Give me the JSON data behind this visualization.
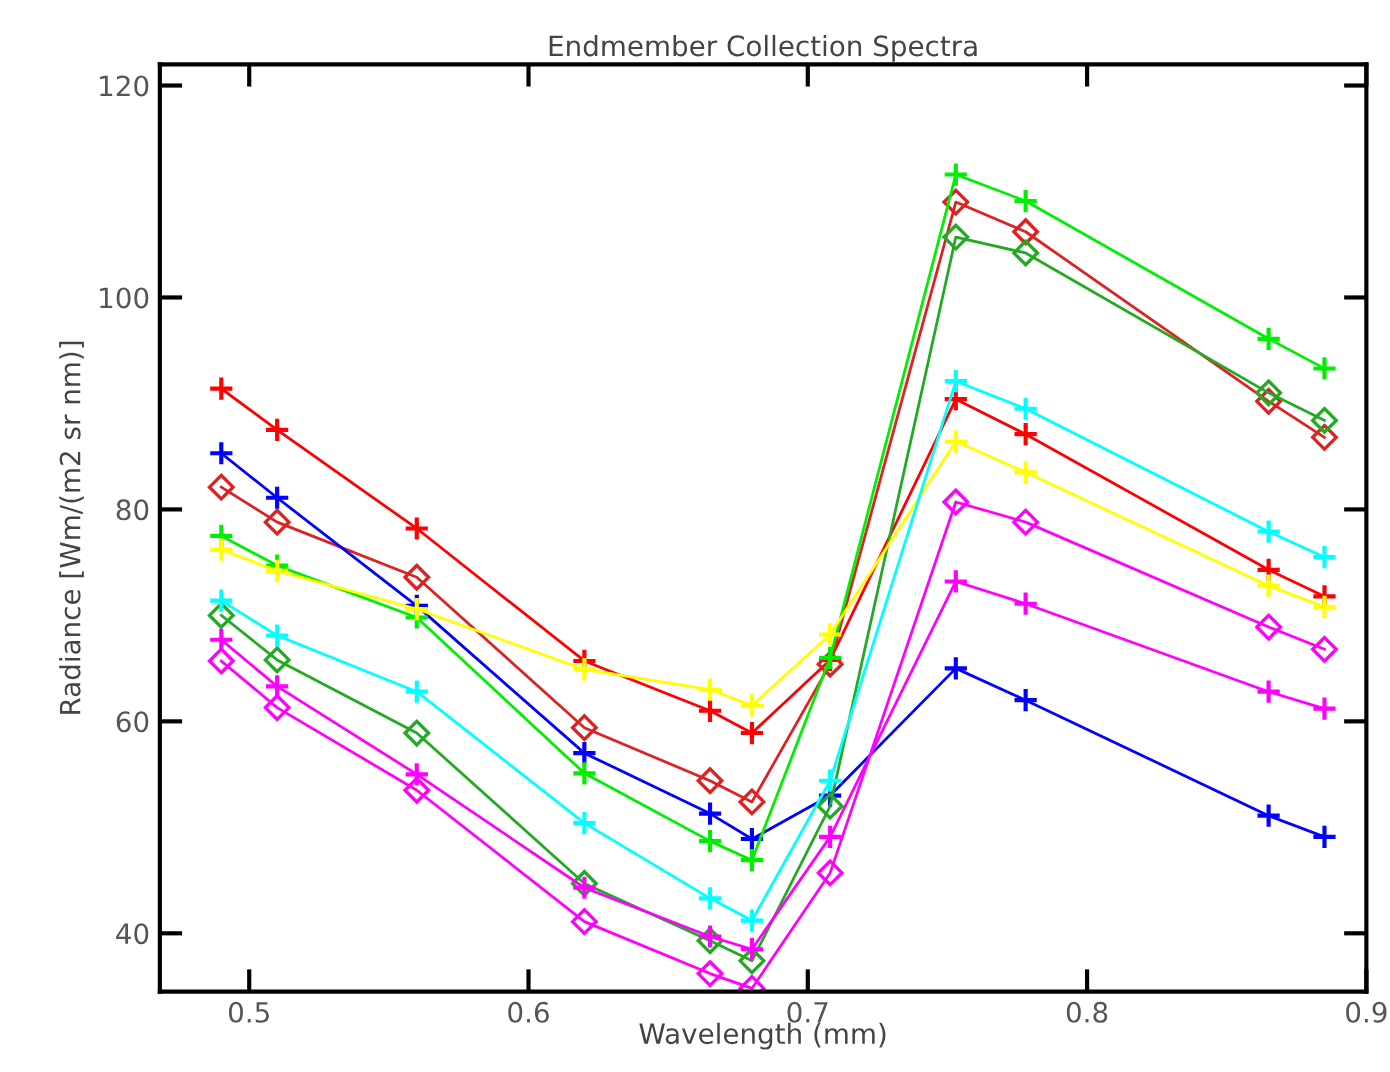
{
  "chart_data": {
    "type": "line",
    "title": "Endmember Collection Spectra",
    "xlabel": "Wavelength (mm)",
    "ylabel": "Radiance [Wm/(m2 sr nm)]",
    "x": [
      0.49,
      0.51,
      0.56,
      0.62,
      0.665,
      0.68,
      0.708,
      0.753,
      0.778,
      0.865,
      0.885
    ],
    "xlim": [
      0.468,
      0.9
    ],
    "xticks": [
      0.5,
      0.6,
      0.7,
      0.8,
      0.9
    ],
    "ylim": [
      34.5,
      122
    ],
    "yticks": [
      40,
      60,
      80,
      100,
      120
    ],
    "grid": false,
    "legend": false,
    "line_style": "solid",
    "series": [
      {
        "color": "#ff0000",
        "marker": "cross",
        "values": [
          91.4,
          87.5,
          78.2,
          65.7,
          61.0,
          58.9,
          65.8,
          90.4,
          87.1,
          74.3,
          71.8
        ]
      },
      {
        "color": "#dd2222",
        "marker": "diamond",
        "values": [
          82.1,
          78.8,
          73.6,
          59.4,
          54.4,
          52.4,
          65.4,
          109.0,
          106.2,
          90.2,
          86.8
        ]
      },
      {
        "color": "#0000ff",
        "marker": "cross",
        "values": [
          85.3,
          81.1,
          70.9,
          57.0,
          51.3,
          48.9,
          53.0,
          65.0,
          62.0,
          51.1,
          49.1
        ]
      },
      {
        "color": "#00ee00",
        "marker": "cross",
        "values": [
          77.5,
          74.7,
          69.8,
          55.1,
          48.7,
          46.9,
          66.0,
          111.6,
          109.1,
          96.1,
          93.3
        ]
      },
      {
        "color": "#22aa22",
        "marker": "diamond",
        "values": [
          70.0,
          65.8,
          58.9,
          44.7,
          39.3,
          37.4,
          52.0,
          105.7,
          104.2,
          91.0,
          88.4
        ]
      },
      {
        "color": "#ffff00",
        "marker": "cross",
        "values": [
          76.2,
          74.2,
          70.6,
          64.9,
          63.0,
          61.5,
          68.2,
          86.4,
          83.5,
          72.8,
          70.8
        ]
      },
      {
        "color": "#00ffff",
        "marker": "cross",
        "values": [
          71.4,
          68.1,
          62.8,
          50.4,
          43.3,
          41.2,
          54.4,
          92.1,
          89.5,
          77.9,
          75.5
        ]
      },
      {
        "color": "#ff00ff",
        "marker": "cross",
        "values": [
          67.7,
          63.3,
          55.0,
          44.3,
          39.7,
          38.5,
          49.1,
          73.2,
          71.1,
          62.8,
          61.2
        ]
      },
      {
        "color": "#ff00ff",
        "marker": "diamond",
        "values": [
          65.7,
          61.3,
          53.5,
          41.1,
          36.2,
          34.8,
          45.7,
          80.7,
          78.8,
          68.9,
          66.8
        ]
      }
    ]
  }
}
